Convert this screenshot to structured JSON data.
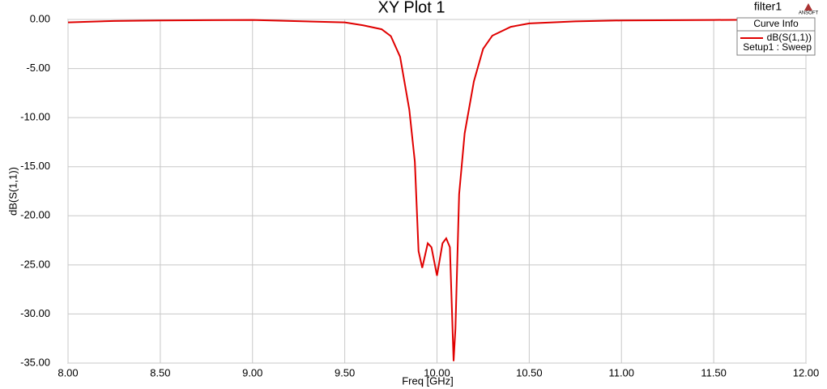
{
  "chart_data": {
    "type": "line",
    "title": "XY Plot 1",
    "design_name": "filter1",
    "logo": "ANSOFT",
    "legend_title": "Curve Info",
    "legend_subtitle": "Setup1 : Sweep",
    "x_label": "Freq [GHz]",
    "y_label": "dB(S(1,1))",
    "x": [
      8.0,
      8.25,
      8.5,
      9.0,
      9.5,
      9.6,
      9.7,
      9.75,
      9.8,
      9.85,
      9.88,
      9.9,
      9.92,
      9.95,
      9.97,
      10.0,
      10.03,
      10.05,
      10.07,
      10.09,
      10.1,
      10.12,
      10.15,
      10.2,
      10.25,
      10.3,
      10.4,
      10.5,
      10.75,
      11.0,
      11.5,
      12.0
    ],
    "series": [
      {
        "name": "dB(S(1,1))",
        "color": "#e00000",
        "values": [
          -0.3,
          -0.15,
          -0.1,
          -0.05,
          -0.3,
          -0.6,
          -1.0,
          -1.7,
          -3.8,
          -9.2,
          -14.5,
          -23.6,
          -25.3,
          -22.8,
          -23.2,
          -26.1,
          -22.8,
          -22.3,
          -23.2,
          -34.8,
          -31.5,
          -17.8,
          -11.6,
          -6.3,
          -3.0,
          -1.65,
          -0.75,
          -0.4,
          -0.2,
          -0.1,
          -0.05,
          0.0
        ]
      }
    ],
    "xlim": [
      8.0,
      12.0
    ],
    "ylim": [
      -35.0,
      0.0
    ],
    "xticks": [
      {
        "value": 8.0,
        "label": "8.00"
      },
      {
        "value": 8.5,
        "label": "8.50"
      },
      {
        "value": 9.0,
        "label": "9.00"
      },
      {
        "value": 9.5,
        "label": "9.50"
      },
      {
        "value": 10.0,
        "label": "10.00"
      },
      {
        "value": 10.5,
        "label": "10.50"
      },
      {
        "value": 11.0,
        "label": "11.00"
      },
      {
        "value": 11.5,
        "label": "11.50"
      },
      {
        "value": 12.0,
        "label": "12.00"
      }
    ],
    "yticks": [
      {
        "value": 0,
        "label": "0.00"
      },
      {
        "value": -5,
        "label": "-5.00"
      },
      {
        "value": -10,
        "label": "-10.00"
      },
      {
        "value": -15,
        "label": "-15.00"
      },
      {
        "value": -20,
        "label": "-20.00"
      },
      {
        "value": -25,
        "label": "-25.00"
      },
      {
        "value": -30,
        "label": "-30.00"
      },
      {
        "value": -35,
        "label": "-35.00"
      }
    ],
    "grid": true
  }
}
